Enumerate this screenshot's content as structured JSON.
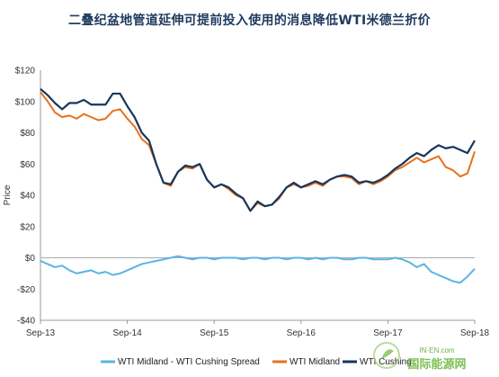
{
  "title": "二叠纪盆地管道延伸可提前投入使用的消息降低WTI米德兰折价",
  "watermark": {
    "line1": "IN-EN.com",
    "line2": "国际能源网"
  },
  "colors": {
    "spread": "#5ab4e5",
    "midland": "#e8711a",
    "cushing": "#17365d",
    "zero": "#aaaaaa",
    "axis": "#999999"
  },
  "chart_data": {
    "type": "line",
    "title": "二叠纪盆地管道延伸可提前投入使用的消息降低WTI米德兰折价",
    "xlabel": "",
    "ylabel": "Price",
    "ylim": [
      -40,
      120
    ],
    "xlim": [
      "2013-09",
      "2018-09"
    ],
    "grid": false,
    "legend_position": "bottom",
    "yticks": [
      {
        "v": 120,
        "label": "$120"
      },
      {
        "v": 100,
        "label": "$100"
      },
      {
        "v": 80,
        "label": "$80"
      },
      {
        "v": 60,
        "label": "$60"
      },
      {
        "v": 40,
        "label": "$40"
      },
      {
        "v": 20,
        "label": "$20"
      },
      {
        "v": 0,
        "label": "$0"
      },
      {
        "v": -20,
        "label": "-$20"
      },
      {
        "v": -40,
        "label": "-$40"
      }
    ],
    "xticks": [
      {
        "t": 0,
        "label": "Sep-13"
      },
      {
        "t": 12,
        "label": "Sep-14"
      },
      {
        "t": 24,
        "label": "Sep-15"
      },
      {
        "t": 36,
        "label": "Sep-16"
      },
      {
        "t": 48,
        "label": "Sep-17"
      },
      {
        "t": 60,
        "label": "Sep-18"
      }
    ],
    "series": [
      {
        "name": "WTI Midland - WTI Cushing Spread",
        "key": "spread",
        "x": [
          0,
          1,
          2,
          3,
          4,
          5,
          6,
          7,
          8,
          9,
          10,
          11,
          12,
          13,
          14,
          15,
          16,
          17,
          18,
          19,
          20,
          21,
          22,
          23,
          24,
          25,
          26,
          27,
          28,
          29,
          30,
          31,
          32,
          33,
          34,
          35,
          36,
          37,
          38,
          39,
          40,
          41,
          42,
          43,
          44,
          45,
          46,
          47,
          48,
          49,
          50,
          51,
          52,
          53,
          54,
          55,
          56,
          57,
          58,
          59,
          60
        ],
        "values": [
          -2,
          -4,
          -6,
          -5,
          -8,
          -10,
          -9,
          -8,
          -10,
          -9,
          -11,
          -10,
          -8,
          -6,
          -4,
          -3,
          -2,
          -1,
          0,
          1,
          0,
          -1,
          0,
          0,
          -1,
          0,
          0,
          0,
          -1,
          0,
          0,
          -1,
          0,
          0,
          -1,
          0,
          0,
          -1,
          0,
          -1,
          0,
          0,
          -1,
          -1,
          0,
          0,
          -1,
          -1,
          -1,
          0,
          -1,
          -3,
          -6,
          -4,
          -9,
          -11,
          -13,
          -15,
          -16,
          -12,
          -7
        ]
      },
      {
        "name": "WTI Midland",
        "key": "midland",
        "x": [
          0,
          1,
          2,
          3,
          4,
          5,
          6,
          7,
          8,
          9,
          10,
          11,
          12,
          13,
          14,
          15,
          16,
          17,
          18,
          19,
          20,
          21,
          22,
          23,
          24,
          25,
          26,
          27,
          28,
          29,
          30,
          31,
          32,
          33,
          34,
          35,
          36,
          37,
          38,
          39,
          40,
          41,
          42,
          43,
          44,
          45,
          46,
          47,
          48,
          49,
          50,
          51,
          52,
          53,
          54,
          55,
          56,
          57,
          58,
          59,
          60
        ],
        "values": [
          106,
          100,
          93,
          90,
          91,
          89,
          92,
          90,
          88,
          89,
          94,
          95,
          89,
          84,
          76,
          72,
          60,
          48,
          46,
          55,
          58,
          57,
          60,
          50,
          45,
          47,
          44,
          40,
          38,
          30,
          35,
          33,
          34,
          38,
          45,
          47,
          45,
          46,
          48,
          46,
          50,
          52,
          52,
          51,
          47,
          49,
          47,
          49,
          52,
          56,
          58,
          61,
          64,
          61,
          63,
          65,
          58,
          56,
          52,
          54,
          68
        ]
      },
      {
        "name": "WTI Cushing",
        "key": "cushing",
        "x": [
          0,
          1,
          2,
          3,
          4,
          5,
          6,
          7,
          8,
          9,
          10,
          11,
          12,
          13,
          14,
          15,
          16,
          17,
          18,
          19,
          20,
          21,
          22,
          23,
          24,
          25,
          26,
          27,
          28,
          29,
          30,
          31,
          32,
          33,
          34,
          35,
          36,
          37,
          38,
          39,
          40,
          41,
          42,
          43,
          44,
          45,
          46,
          47,
          48,
          49,
          50,
          51,
          52,
          53,
          54,
          55,
          56,
          57,
          58,
          59,
          60
        ],
        "values": [
          108,
          104,
          99,
          95,
          99,
          99,
          101,
          98,
          98,
          98,
          105,
          105,
          97,
          90,
          80,
          75,
          60,
          48,
          47,
          55,
          59,
          58,
          60,
          50,
          45,
          47,
          45,
          41,
          38,
          30,
          36,
          33,
          34,
          39,
          45,
          48,
          45,
          47,
          49,
          47,
          50,
          52,
          53,
          52,
          48,
          49,
          48,
          50,
          53,
          57,
          60,
          64,
          67,
          65,
          69,
          72,
          70,
          71,
          69,
          67,
          75
        ]
      }
    ]
  }
}
